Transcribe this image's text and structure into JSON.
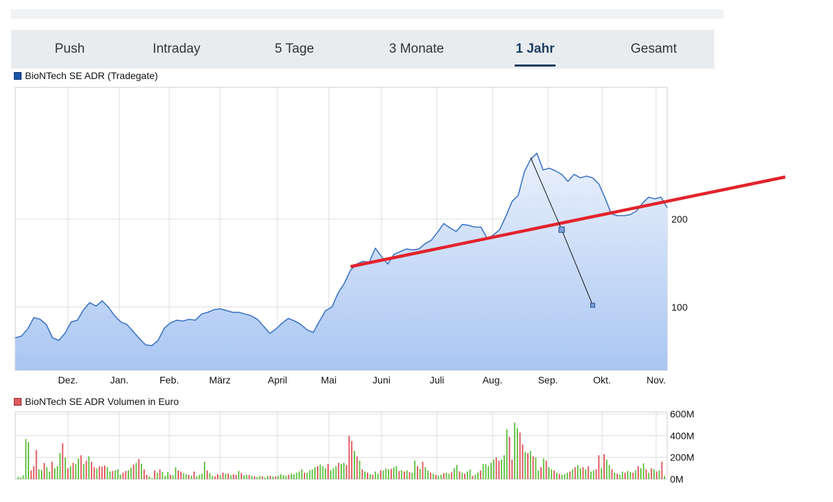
{
  "tabs": [
    {
      "label": "Push",
      "active": false
    },
    {
      "label": "Intraday",
      "active": false
    },
    {
      "label": "5 Tage",
      "active": false
    },
    {
      "label": "3 Monate",
      "active": false
    },
    {
      "label": "1 Jahr",
      "active": true
    },
    {
      "label": "Gesamt",
      "active": false
    }
  ],
  "colors": {
    "price_line": "#3d74c4",
    "price_fill_top": "#eaf1fc",
    "price_fill_bottom": "#a9c6f2",
    "trendline": "#e3232c",
    "volume_up": "#5ec13e",
    "volume_down": "#e0545b",
    "grid": "#dcdcdc",
    "tab_active": "#1c3e60"
  },
  "chart_data": [
    {
      "type": "area",
      "legend": "BioNTech SE ADR (Tradegate)",
      "x_tick_labels": [
        "Dez.",
        "Jan.",
        "Feb.",
        "März",
        "April",
        "Mai",
        "Juni",
        "Juli",
        "Aug.",
        "Sep.",
        "Okt.",
        "Nov."
      ],
      "y_ticks": [
        100,
        200
      ],
      "ylim": [
        28,
        350
      ],
      "grid": true,
      "legend_position": "top-left",
      "series": [
        {
          "points": [
            [
              0,
              65
            ],
            [
              1,
              67
            ],
            [
              2,
              75
            ],
            [
              3,
              88
            ],
            [
              4,
              86
            ],
            [
              5,
              80
            ],
            [
              6,
              65
            ],
            [
              7,
              62
            ],
            [
              8,
              70
            ],
            [
              9,
              83
            ],
            [
              10,
              85
            ],
            [
              11,
              97
            ],
            [
              12,
              105
            ],
            [
              13,
              101
            ],
            [
              14,
              107
            ],
            [
              15,
              100
            ],
            [
              16,
              90
            ],
            [
              17,
              83
            ],
            [
              18,
              80
            ],
            [
              19,
              72
            ],
            [
              20,
              64
            ],
            [
              21,
              57
            ],
            [
              22,
              56
            ],
            [
              23,
              62
            ],
            [
              24,
              76
            ],
            [
              25,
              82
            ],
            [
              26,
              85
            ],
            [
              27,
              84
            ],
            [
              28,
              86
            ],
            [
              29,
              85
            ],
            [
              30,
              92
            ],
            [
              31,
              94
            ],
            [
              32,
              97
            ],
            [
              33,
              98
            ],
            [
              34,
              96
            ],
            [
              35,
              94
            ],
            [
              36,
              94
            ],
            [
              37,
              92
            ],
            [
              38,
              90
            ],
            [
              39,
              86
            ],
            [
              40,
              78
            ],
            [
              41,
              70
            ],
            [
              42,
              75
            ],
            [
              43,
              82
            ],
            [
              44,
              87
            ],
            [
              45,
              84
            ],
            [
              46,
              80
            ],
            [
              47,
              74
            ],
            [
              48,
              71
            ],
            [
              49,
              84
            ],
            [
              50,
              96
            ],
            [
              51,
              100
            ],
            [
              52,
              116
            ],
            [
              53,
              127
            ],
            [
              54,
              142
            ],
            [
              55,
              149
            ],
            [
              56,
              152
            ],
            [
              57,
              151
            ],
            [
              58,
              167
            ],
            [
              59,
              157
            ],
            [
              60,
              149
            ],
            [
              61,
              160
            ],
            [
              62,
              163
            ],
            [
              63,
              166
            ],
            [
              64,
              165
            ],
            [
              65,
              166
            ],
            [
              66,
              172
            ],
            [
              67,
              176
            ],
            [
              68,
              185
            ],
            [
              69,
              195
            ],
            [
              70,
              190
            ],
            [
              71,
              186
            ],
            [
              72,
              194
            ],
            [
              73,
              193
            ],
            [
              74,
              191
            ],
            [
              75,
              191
            ],
            [
              76,
              178
            ],
            [
              77,
              182
            ],
            [
              78,
              188
            ],
            [
              79,
              203
            ],
            [
              80,
              220
            ],
            [
              81,
              227
            ],
            [
              82,
              254
            ],
            [
              83,
              268
            ],
            [
              84,
              275
            ],
            [
              85,
              256
            ],
            [
              86,
              258
            ],
            [
              87,
              255
            ],
            [
              88,
              251
            ],
            [
              89,
              243
            ],
            [
              90,
              251
            ],
            [
              91,
              247
            ],
            [
              92,
              249
            ],
            [
              93,
              247
            ],
            [
              94,
              240
            ],
            [
              95,
              224
            ],
            [
              96,
              206
            ],
            [
              97,
              204
            ],
            [
              98,
              204
            ],
            [
              99,
              205
            ],
            [
              100,
              209
            ],
            [
              101,
              218
            ],
            [
              102,
              225
            ],
            [
              103,
              223
            ],
            [
              104,
              225
            ],
            [
              105,
              213
            ]
          ]
        }
      ],
      "trendline": {
        "points": [
          [
            54,
            146
          ],
          [
            105,
            215
          ],
          [
            124,
            248
          ]
        ]
      },
      "annotation_line": {
        "points": [
          [
            83,
            270
          ],
          [
            88,
            188
          ],
          [
            93,
            102
          ]
        ]
      }
    },
    {
      "type": "bar",
      "legend": "BioNTech SE ADR Volumen in Euro",
      "y_tick_labels": [
        "600M",
        "400M",
        "200M",
        "0M"
      ],
      "ylim": [
        0,
        620
      ],
      "grid": true,
      "legend_position": "top-left",
      "series": [
        {
          "name": "Volumen",
          "values": [
            20,
            15,
            35,
            370,
            340,
            80,
            120,
            270,
            90,
            85,
            150,
            110,
            70,
            160,
            100,
            120,
            240,
            330,
            200,
            100,
            120,
            150,
            140,
            190,
            220,
            140,
            170,
            210,
            160,
            110,
            100,
            120,
            115,
            125,
            110,
            70,
            75,
            80,
            90,
            40,
            60,
            75,
            80,
            105,
            135,
            150,
            185,
            140,
            90,
            40,
            25,
            10,
            80,
            60,
            90,
            65,
            30,
            65,
            40,
            35,
            110,
            80,
            70,
            55,
            45,
            40,
            30,
            70,
            25,
            40,
            50,
            160,
            80,
            55,
            30,
            25,
            45,
            35,
            60,
            50,
            50,
            35,
            45,
            40,
            75,
            55,
            35,
            40,
            40,
            30,
            25,
            20,
            30,
            25,
            15,
            30,
            30,
            25,
            25,
            30,
            45,
            35,
            30,
            40,
            50,
            45,
            60,
            70,
            90,
            60,
            60,
            80,
            90,
            110,
            120,
            135,
            120,
            100,
            140,
            80,
            100,
            120,
            150,
            140,
            150,
            130,
            400,
            350,
            260,
            210,
            170,
            90,
            70,
            60,
            45,
            40,
            70,
            50,
            80,
            80,
            100,
            90,
            95,
            110,
            120,
            75,
            80,
            70,
            80,
            65,
            60,
            170,
            120,
            95,
            160,
            110,
            80,
            60,
            50,
            40,
            30,
            40,
            55,
            60,
            50,
            65,
            100,
            130,
            70,
            60,
            50,
            70,
            90,
            30,
            40,
            60,
            80,
            140,
            140,
            120,
            150,
            180,
            200,
            170,
            180,
            220,
            460,
            390,
            180,
            520,
            470,
            430,
            320,
            250,
            240,
            260,
            210,
            200,
            80,
            110,
            190,
            170,
            110,
            90,
            80,
            60,
            50,
            40,
            45,
            60,
            70,
            90,
            110,
            130,
            100,
            110,
            90,
            120,
            70,
            80,
            90,
            220,
            100,
            230,
            180,
            130,
            90,
            60,
            50,
            40,
            70,
            60,
            75,
            65,
            60,
            80,
            120,
            100,
            145,
            90,
            60,
            100,
            90,
            70,
            80,
            160,
            30
          ]
        }
      ],
      "colors_up_down": [
        1,
        1,
        1,
        1,
        1,
        0,
        0,
        0,
        1,
        1,
        0,
        1,
        1,
        0,
        1,
        1,
        1,
        0,
        1,
        0,
        1,
        0,
        1,
        1,
        0,
        1,
        0,
        1,
        0,
        0,
        1,
        0,
        0,
        0,
        1,
        1,
        0,
        1,
        1,
        1,
        0,
        0,
        1,
        1,
        0,
        1,
        0,
        1,
        0,
        0,
        1,
        1,
        0,
        1,
        0,
        1,
        1,
        1,
        0,
        1,
        1,
        0,
        0,
        1,
        1,
        0,
        1,
        0,
        1,
        1,
        1,
        1,
        0,
        1,
        1,
        0,
        0,
        1,
        0,
        1,
        0,
        1,
        0,
        0,
        1,
        0,
        1,
        1,
        0,
        1,
        0,
        1,
        1,
        0,
        1,
        1,
        0,
        1,
        0,
        1,
        1,
        1,
        1,
        0,
        1,
        1,
        1,
        1,
        1,
        0,
        1,
        1,
        1,
        1,
        0,
        1,
        1,
        1,
        0,
        1,
        1,
        1,
        0,
        1,
        1,
        0,
        0,
        0,
        1,
        0,
        1,
        0,
        1,
        0,
        1,
        0,
        1,
        1,
        0,
        1,
        1,
        1,
        0,
        1,
        1,
        0,
        1,
        0,
        1,
        0,
        1,
        1,
        0,
        1,
        0,
        1,
        1,
        0,
        1,
        0,
        1,
        1,
        0,
        1,
        1,
        0,
        1,
        1,
        0,
        1,
        0,
        1,
        1,
        0,
        1,
        1,
        0,
        1,
        1,
        1,
        1,
        1,
        0,
        0,
        1,
        1,
        1,
        0,
        0,
        1,
        1,
        0,
        0,
        1,
        0,
        1,
        0,
        1,
        1,
        0,
        1,
        0,
        1,
        1,
        0,
        1,
        0,
        1,
        1,
        1,
        0,
        1,
        0,
        1,
        1,
        0,
        1,
        0,
        1,
        1,
        0,
        0,
        1,
        0,
        1,
        1,
        0,
        1,
        0,
        1,
        1,
        0,
        1,
        1,
        0,
        1,
        0,
        1,
        1,
        0,
        1,
        0,
        1,
        0,
        1,
        0,
        1
      ]
    }
  ]
}
